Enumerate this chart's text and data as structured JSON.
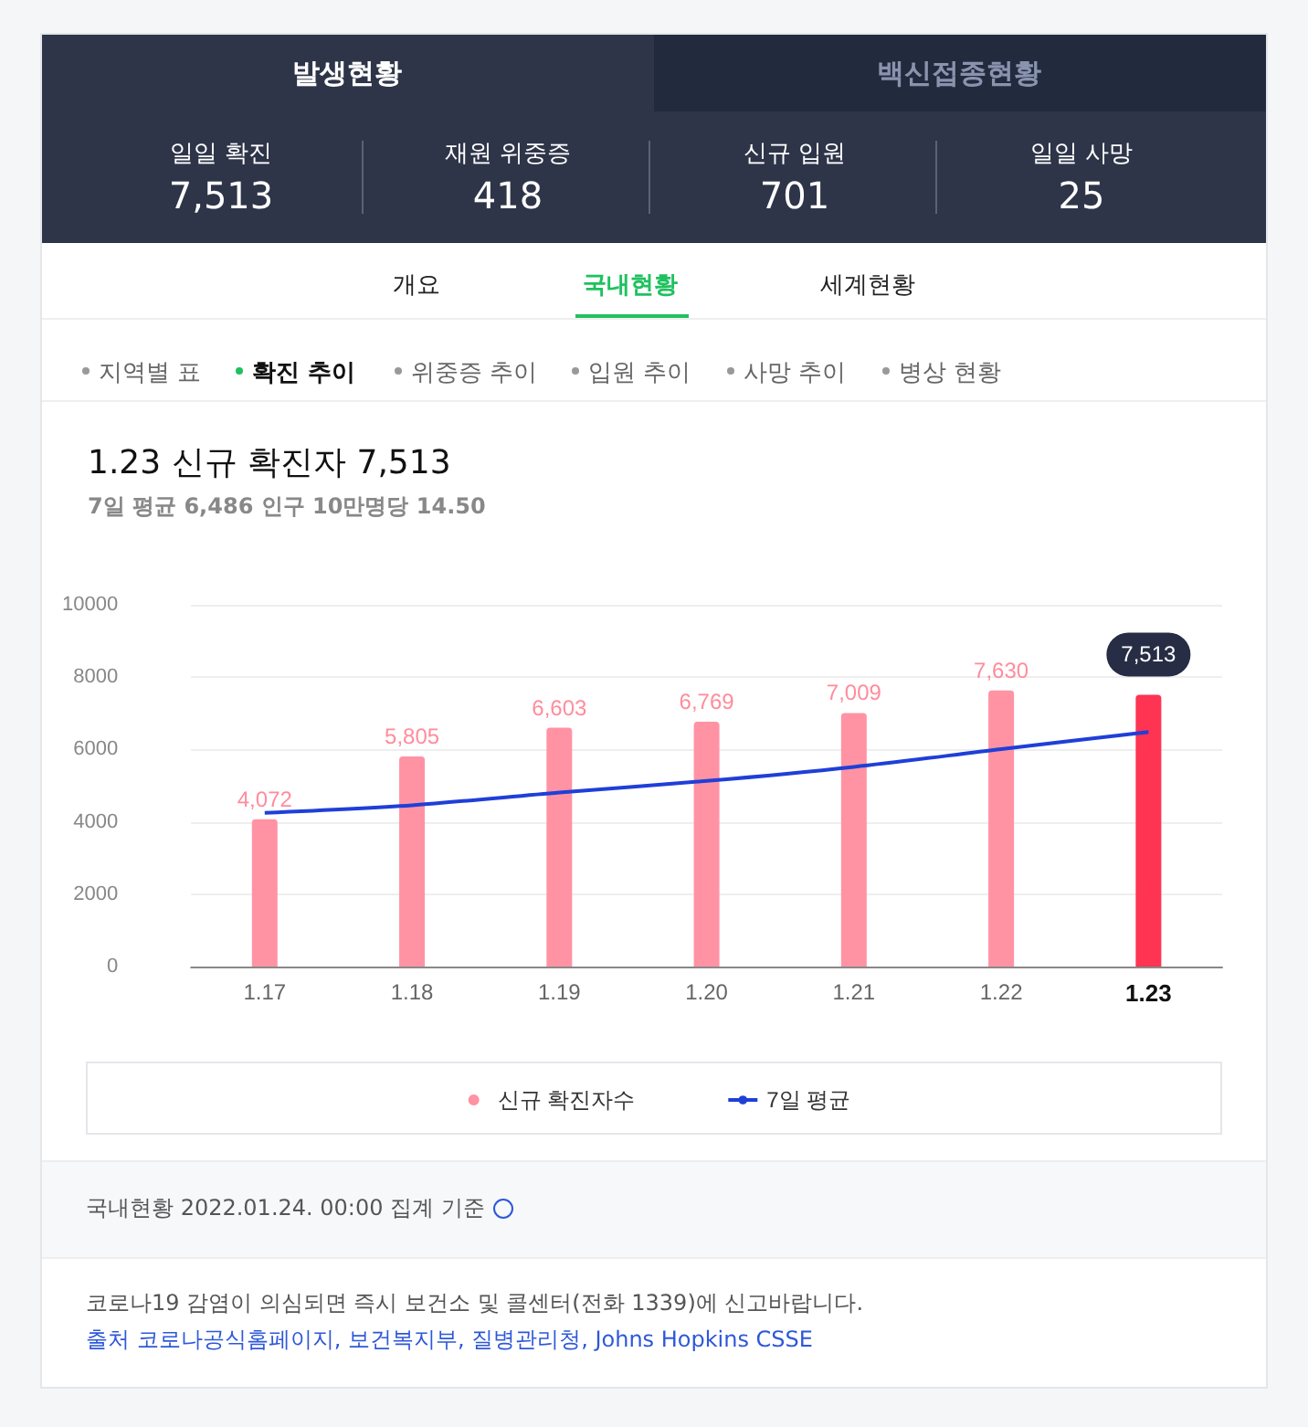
{
  "chart_data": {
    "type": "bar",
    "title": "1.23 신규 확진자 7,513",
    "subtitle": "7일 평균 6,486 인구 10만명당 14.50",
    "categories": [
      "1.17",
      "1.18",
      "1.19",
      "1.20",
      "1.21",
      "1.22",
      "1.23"
    ],
    "series": [
      {
        "name": "신규 확진자수",
        "colors": [
          "#ff93a3",
          "#ff93a3",
          "#ff93a3",
          "#ff93a3",
          "#ff93a3",
          "#ff93a3",
          "#ff3352"
        ],
        "values": [
          4072,
          5805,
          6603,
          6769,
          7009,
          7630,
          7513
        ],
        "value_labels": [
          "4,072",
          "5,805",
          "6,603",
          "6,769",
          "7,009",
          "7,630",
          "7,513"
        ]
      },
      {
        "name": "7일 평균",
        "type": "line",
        "color": "#1f3fd8",
        "values": [
          4250,
          4460,
          4810,
          5130,
          5520,
          6010,
          6486
        ]
      }
    ],
    "ylim": [
      0,
      10000
    ],
    "yticks": [
      0,
      2000,
      4000,
      6000,
      8000,
      10000
    ],
    "grid": "y",
    "legend": "bottom",
    "marker": "none",
    "annotations": [
      "발생현황",
      "백신접종현황",
      "일일 확진",
      "7,513",
      "재원 위중증",
      "418",
      "신규 입원",
      "701",
      "일일 사망",
      "25",
      "개요",
      "국내현황",
      "세계현황",
      "지역별 표",
      "확진 추이",
      "위중증 추이",
      "입원 추이",
      "사망 추이",
      "병상 현황",
      "국내현황 2022.01.24. 00:00 집계 기준",
      "코로나19 감염이 의심되면 즉시 보건소 및 콜센터(전화 1339)에 신고바랍니다.",
      "출처 코로나공식홈페이지, 보건복지부, 질병관리청, Johns Hopkins CSSE"
    ]
  }
}
